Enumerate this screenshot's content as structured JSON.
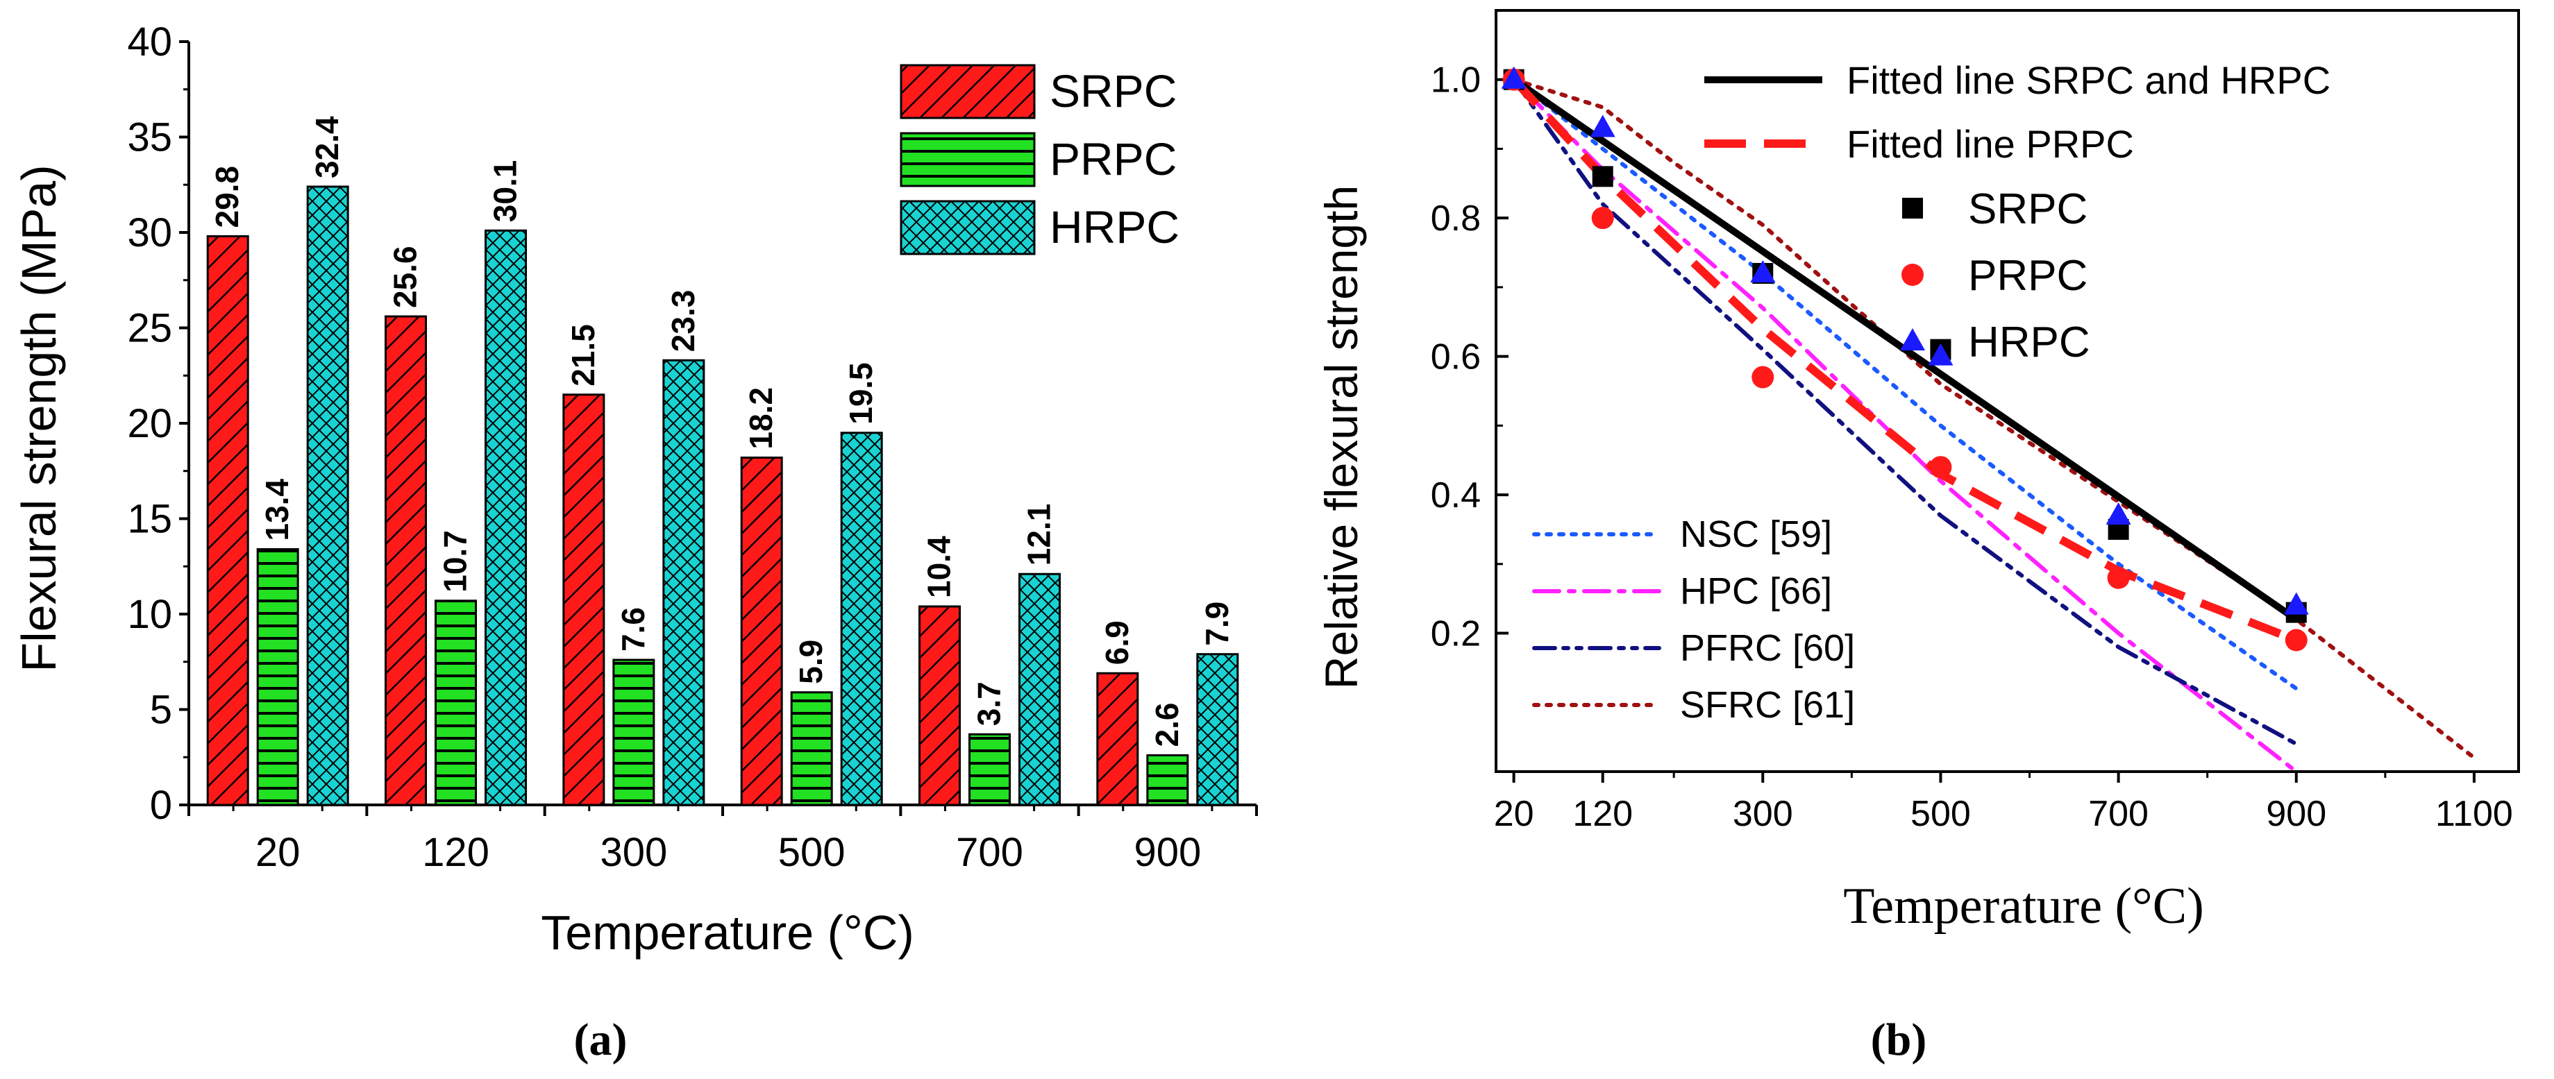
{
  "chart_data": [
    {
      "panel_label": "(a)",
      "type": "bar",
      "title": "",
      "xlabel": "Temperature (°C)",
      "ylabel": "Flexural strength (MPa)",
      "ylim": [
        0,
        40
      ],
      "yticks": [
        "0",
        "5",
        "10",
        "15",
        "20",
        "25",
        "30",
        "35",
        "40"
      ],
      "categories": [
        "20",
        "120",
        "300",
        "500",
        "700",
        "900"
      ],
      "legend_position": "top-right",
      "series": [
        {
          "name": "SRPC",
          "color": "#ff1a1a",
          "pattern": "diagonal-hatch",
          "values": [
            29.8,
            25.6,
            21.5,
            18.2,
            10.4,
            6.9
          ],
          "labels": [
            "29.8",
            "25.6",
            "21.5",
            "18.2",
            "10.4",
            "6.9"
          ]
        },
        {
          "name": "PRPC",
          "color": "#22e022",
          "pattern": "horizontal-lines",
          "values": [
            13.4,
            10.7,
            7.6,
            5.9,
            3.7,
            2.6
          ],
          "labels": [
            "13.4",
            "10.7",
            "7.6",
            "5.9",
            "3.7",
            "2.6"
          ]
        },
        {
          "name": "HRPC",
          "color": "#19d3d3",
          "pattern": "cross-hatch",
          "values": [
            32.4,
            30.1,
            23.3,
            19.5,
            12.1,
            7.9
          ],
          "labels": [
            "32.4",
            "30.1",
            "23.3",
            "19.5",
            "12.1",
            "7.9"
          ]
        }
      ]
    },
    {
      "panel_label": "(b)",
      "type": "line",
      "title": "",
      "xlabel": "Temperature (°C)",
      "ylabel": "Relative flexural strength",
      "xlim": [
        0,
        1150
      ],
      "ylim": [
        0,
        1.1
      ],
      "xticks": [
        "20",
        "120",
        "300",
        "500",
        "700",
        "900",
        "1100"
      ],
      "yticks": [
        "0.2",
        "0.4",
        "0.6",
        "0.8",
        "1.0"
      ],
      "fitted_lines": [
        {
          "name": "Fitted line SRPC and HRPC",
          "color": "#000000",
          "style": "solid",
          "x": [
            20,
            900
          ],
          "y": [
            1.0,
            0.22
          ]
        },
        {
          "name": "Fitted line PRPC",
          "color": "#ff1a1a",
          "style": "dashed",
          "x": [
            20,
            120,
            300,
            500,
            700,
            900
          ],
          "y": [
            1.0,
            0.86,
            0.64,
            0.43,
            0.29,
            0.19
          ]
        }
      ],
      "scatter_series": [
        {
          "name": "SRPC",
          "color": "#000000",
          "marker": "square",
          "x": [
            20,
            120,
            300,
            500,
            700,
            900
          ],
          "y": [
            1.0,
            0.86,
            0.72,
            0.61,
            0.35,
            0.23
          ]
        },
        {
          "name": "PRPC",
          "color": "#ff1a1a",
          "marker": "circle",
          "x": [
            20,
            120,
            300,
            500,
            700,
            900
          ],
          "y": [
            1.0,
            0.8,
            0.57,
            0.44,
            0.28,
            0.19
          ]
        },
        {
          "name": "HRPC",
          "color": "#1a1aff",
          "marker": "triangle",
          "x": [
            20,
            120,
            300,
            500,
            700,
            900
          ],
          "y": [
            1.0,
            0.93,
            0.72,
            0.6,
            0.37,
            0.24
          ]
        }
      ],
      "reference_curves": [
        {
          "name": "NSC [59]",
          "color": "#1a5aff",
          "style": "dotted",
          "x": [
            20,
            120,
            300,
            500,
            700,
            900
          ],
          "y": [
            1.0,
            0.9,
            0.72,
            0.5,
            0.3,
            0.12
          ]
        },
        {
          "name": "HPC [66]",
          "color": "#ff22ff",
          "style": "dash-dot",
          "x": [
            20,
            120,
            300,
            500,
            700,
            900
          ],
          "y": [
            1.0,
            0.87,
            0.67,
            0.42,
            0.2,
            0.0
          ]
        },
        {
          "name": "PFRC [60]",
          "color": "#101080",
          "style": "dash-dot-dot",
          "x": [
            20,
            120,
            300,
            500,
            700,
            900
          ],
          "y": [
            1.0,
            0.82,
            0.61,
            0.37,
            0.18,
            0.04
          ]
        },
        {
          "name": "SFRC [61]",
          "color": "#a01010",
          "style": "dotted",
          "x": [
            20,
            120,
            200,
            300,
            500,
            700,
            900,
            1100
          ],
          "y": [
            1.0,
            0.96,
            0.88,
            0.79,
            0.56,
            0.39,
            0.22,
            0.02
          ]
        }
      ]
    }
  ]
}
